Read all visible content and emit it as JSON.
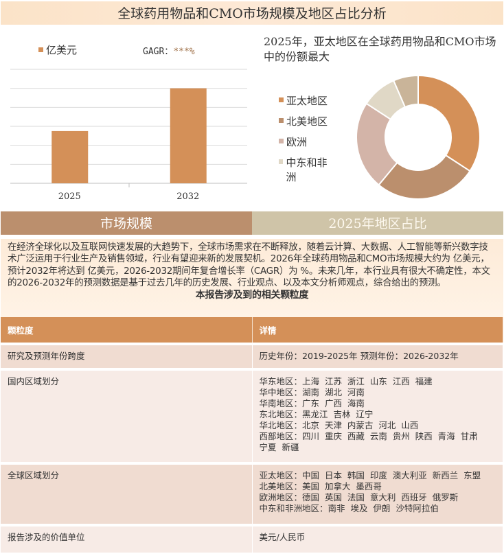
{
  "header": {
    "title": "全球药用物品和CMO市场规模及地区占比分析"
  },
  "colors": {
    "bar": "#d49058",
    "header_bg": "#fbe3c8",
    "tab1": "#bb8f6d",
    "tab2": "#cfc4a8",
    "table_header": "#d49058"
  },
  "chart_data": [
    {
      "type": "bar",
      "categories": [
        "2025",
        "2032"
      ],
      "values": [
        2.75,
        5
      ],
      "ylim": [
        0,
        6
      ],
      "grid": true,
      "legend": {
        "label": "亿美元",
        "position": "top-left"
      },
      "annotation": {
        "label": "GAGR：",
        "value": "***%"
      }
    },
    {
      "type": "pie",
      "donut": true,
      "title": "2025年，亚太地区在全球药用物品和CMO市场中的份额最大",
      "labels": [
        "亚太地区",
        "北美地区",
        "欧洲",
        "中东和非洲",
        ""
      ],
      "values": [
        34.2,
        26.8,
        23.2,
        9.3,
        6.5
      ],
      "colors": [
        "#d49058",
        "#bb8f6d",
        "#d3b4a8",
        "#e0d8c6",
        "#c9b499"
      ],
      "legend_position": "left"
    }
  ],
  "tabs": [
    "市场规模",
    "2025年地区占比"
  ],
  "description": "在经济全球化以及互联网快速发展的大趋势下，全球市场需求在不断释放，随着云计算、大数据、人工智能等新兴数字技术广泛运用于行业生产及销售领域，行业有望迎来新的发展契机。2026年全球药用物品和CMO市场规模大约为 亿美元，预计2032年将达到 亿美元，2026-2032期间年复合增长率（CAGR）为 %。未来几年，本行业具有很大不确定性，本文的2026-2032年的预测数据是基于过去几年的历史发展、行业观点、以及本文分析师观点，综合给出的预测。",
  "table": {
    "title": "本报告涉及到的相关颗粒度",
    "headers": [
      "颗粒度",
      "详情"
    ],
    "rows": [
      {
        "label": "研究及预测年份跨度",
        "lines": [
          "历史年份：2019-2025年 预测年份：2026-2032年"
        ]
      },
      {
        "label": "国内区域划分",
        "lines": [
          "华东地区：上海  江苏  浙江  山东  江西  福建",
          "华中地区：湖南  湖北  河南",
          "华南地区：广东  广西  海南",
          "东北地区：黑龙江  吉林  辽宁",
          "华北地区：北京  天津  内蒙古  河北  山西",
          "西部地区：四川  重庆  西藏  云南  贵州  陕西  青海  甘肃",
          "宁夏  新疆"
        ]
      },
      {
        "label": "全球区域划分",
        "lines": [
          "亚太地区：中国  日本  韩国  印度  澳大利亚  新西兰  东盟",
          "北美地区：美国  加拿大  墨西哥",
          "欧洲地区：德国  英国  法国  意大利  西班牙  俄罗斯",
          "中东和非洲地区：南非  埃及  伊朗  沙特阿拉伯"
        ]
      },
      {
        "label": "报告涉及的价值单位",
        "lines": [
          "美元/人民币"
        ]
      }
    ]
  }
}
